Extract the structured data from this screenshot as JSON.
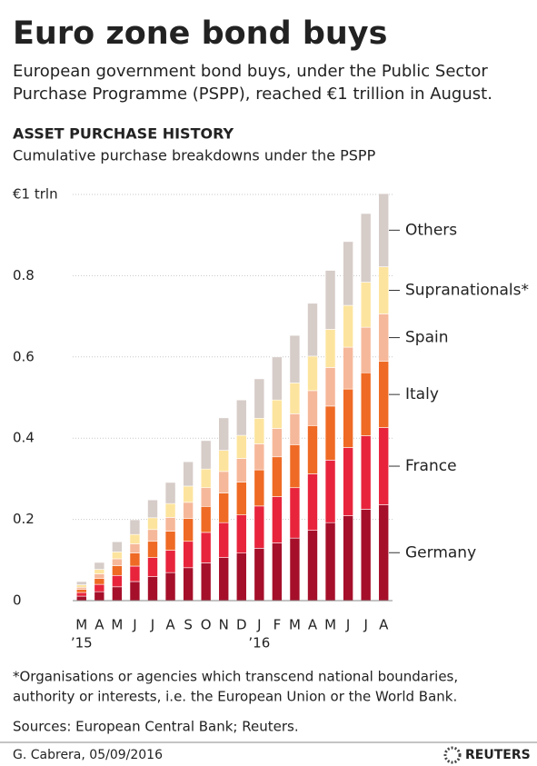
{
  "chart_data": {
    "type": "stacked_bar",
    "title": "Euro zone bond buys",
    "subtitle": [
      "European government bond buys, under the Public Sector",
      "Purchase Programme (PSPP), reached €1 trillion in August."
    ],
    "chart_title": "ASSET PURCHASE HISTORY",
    "chart_subtitle": "Cumulative purchase breakdowns under the PSPP",
    "categories": [
      "M",
      "A",
      "M",
      "J",
      "J",
      "A",
      "S",
      "O",
      "N",
      "D",
      "J",
      "F",
      "M",
      "A",
      "M",
      "J",
      "J",
      "A"
    ],
    "x_sublabels": [
      "’15",
      null,
      null,
      null,
      null,
      null,
      null,
      null,
      null,
      null,
      "’16",
      null,
      null,
      null,
      null,
      null,
      null,
      null
    ],
    "series": [
      {
        "name": "Germany",
        "color": "#a50f2a",
        "values": [
          0.011,
          0.022,
          0.034,
          0.047,
          0.059,
          0.069,
          0.081,
          0.093,
          0.106,
          0.117,
          0.129,
          0.142,
          0.154,
          0.173,
          0.192,
          0.209,
          0.225,
          0.236
        ]
      },
      {
        "name": "France",
        "color": "#e8243c",
        "values": [
          0.009,
          0.018,
          0.028,
          0.038,
          0.047,
          0.055,
          0.065,
          0.075,
          0.086,
          0.094,
          0.104,
          0.114,
          0.124,
          0.139,
          0.154,
          0.168,
          0.181,
          0.19
        ]
      },
      {
        "name": "Italy",
        "color": "#ef6a24",
        "values": [
          0.008,
          0.015,
          0.024,
          0.032,
          0.04,
          0.047,
          0.056,
          0.064,
          0.073,
          0.081,
          0.089,
          0.098,
          0.106,
          0.119,
          0.133,
          0.144,
          0.155,
          0.163
        ]
      },
      {
        "name": "Spain",
        "color": "#f6b89a",
        "values": [
          0.005,
          0.011,
          0.017,
          0.023,
          0.029,
          0.034,
          0.04,
          0.046,
          0.053,
          0.058,
          0.064,
          0.07,
          0.076,
          0.086,
          0.095,
          0.103,
          0.112,
          0.117
        ]
      },
      {
        "name": "Supranationals*",
        "color": "#fde49e",
        "values": [
          0.006,
          0.011,
          0.017,
          0.023,
          0.029,
          0.034,
          0.04,
          0.046,
          0.052,
          0.057,
          0.063,
          0.07,
          0.076,
          0.085,
          0.094,
          0.103,
          0.111,
          0.116
        ]
      },
      {
        "name": "Others",
        "color": "#d6ccc8",
        "values": [
          0.008,
          0.017,
          0.025,
          0.036,
          0.044,
          0.052,
          0.06,
          0.07,
          0.08,
          0.087,
          0.097,
          0.106,
          0.117,
          0.13,
          0.145,
          0.157,
          0.169,
          0.18
        ]
      }
    ],
    "ylim": [
      0,
      1
    ],
    "yticks": [
      0,
      0.2,
      0.4,
      0.6,
      0.8,
      {
        "value": 1,
        "label": "€1 trln"
      }
    ],
    "grid": true
  },
  "footnote": [
    "*Organisations or agencies which transcend national boundaries,",
    "authority or interests, i.e. the European Union or the World Bank."
  ],
  "sources": "Sources: European Central Bank; Reuters.",
  "credit": "G. Cabrera,  05/09/2016",
  "logo": "REUTERS"
}
